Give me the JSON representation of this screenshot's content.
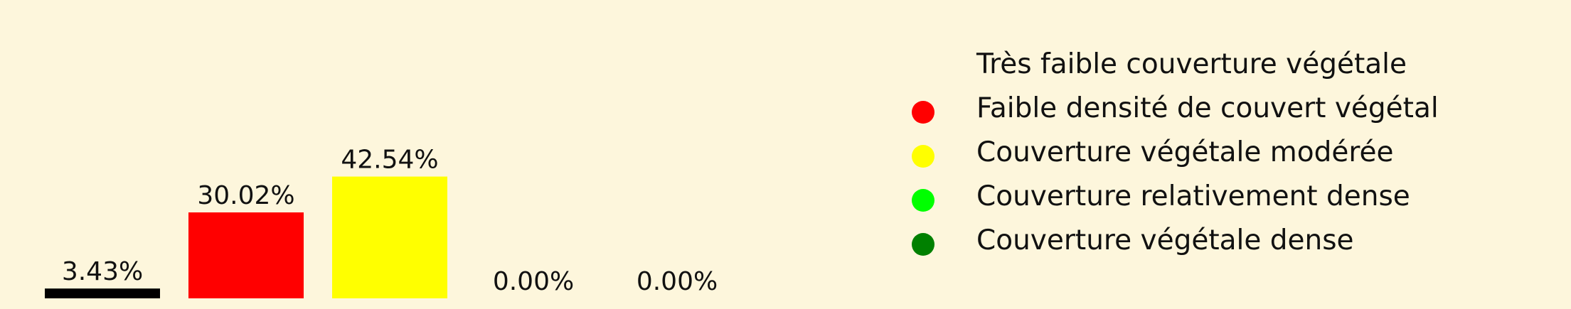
{
  "chart_data": {
    "type": "bar",
    "categories": [
      "Très faible couverture végétale",
      "Faible densité de couvert végétal",
      "Couverture végétale modérée",
      "Couverture relativement dense",
      "Couverture végétale dense"
    ],
    "values": [
      3.43,
      30.02,
      42.54,
      0.0,
      0.0
    ],
    "value_labels": [
      "3.43%",
      "30.02%",
      "42.54%",
      "0.00%",
      "0.00%"
    ],
    "colors": [
      "#000000",
      "#ff0000",
      "#ffff00",
      "#00ff00",
      "#008000"
    ],
    "legend": "right",
    "grid": false,
    "axes_visible": false
  },
  "legend": {
    "items": [
      {
        "label": "Très faible couverture végétale",
        "color": "#000000"
      },
      {
        "label": "Faible densité de couvert végétal",
        "color": "#ff0000"
      },
      {
        "label": "Couverture végétale modérée",
        "color": "#ffff00"
      },
      {
        "label": "Couverture relativement dense",
        "color": "#00ff00"
      },
      {
        "label": "Couverture végétale dense",
        "color": "#008000"
      }
    ]
  }
}
